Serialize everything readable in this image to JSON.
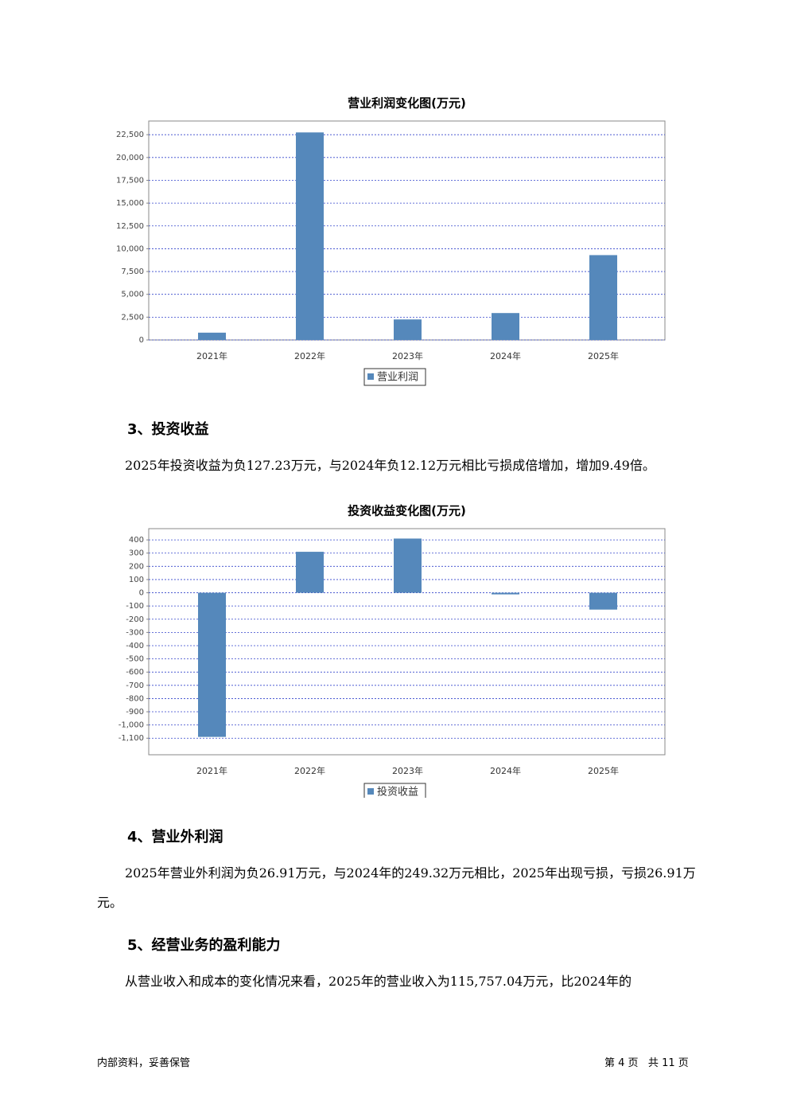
{
  "chart_data": [
    {
      "type": "bar",
      "title": "营业利润变化图(万元)",
      "categories": [
        "2021年",
        "2022年",
        "2023年",
        "2024年",
        "2025年"
      ],
      "series": [
        {
          "name": "营业利润",
          "color": "#5588bb",
          "values": [
            800,
            22750,
            2250,
            2950,
            9300
          ]
        }
      ],
      "ylim": [
        0,
        24000
      ],
      "yticks": [
        0,
        {
          "value": 2500,
          "label": "2,500"
        },
        {
          "value": 5000,
          "label": "5,000"
        },
        {
          "value": 7500,
          "label": "7,500"
        },
        {
          "value": 10000,
          "label": "10,000"
        },
        {
          "value": 12500,
          "label": "12,500"
        },
        {
          "value": 15000,
          "label": "15,000"
        },
        {
          "value": 17500,
          "label": "17,500"
        },
        {
          "value": 20000,
          "label": "20,000"
        },
        {
          "value": 22500,
          "label": "22,500"
        }
      ],
      "grid": true
    },
    {
      "type": "bar",
      "title": "投资收益变化图(万元)",
      "categories": [
        "2021年",
        "2022年",
        "2023年",
        "2024年",
        "2025年"
      ],
      "series": [
        {
          "name": "投资收益",
          "color": "#5588bb",
          "values": [
            -1090,
            310,
            410,
            -12.12,
            -127.23
          ]
        }
      ],
      "ylim": [
        -1225,
        485
      ],
      "yticks": [
        {
          "value": -1100,
          "label": "-1,100"
        },
        {
          "value": -1000,
          "label": "-1,000"
        },
        -900,
        -800,
        -700,
        -600,
        -500,
        -400,
        -300,
        -200,
        -100,
        0,
        100,
        200,
        300,
        400
      ],
      "grid": true
    }
  ],
  "sections": [
    {
      "heading": "3、投资收益",
      "paragraph": "2025年投资收益为负127.23万元，与2024年负12.12万元相比亏损成倍增加，增加9.49倍。"
    },
    {
      "heading": "4、营业外利润",
      "paragraph": "2025年营业外利润为负26.91万元，与2024年的249.32万元相比，2025年出现亏损，亏损26.91万元。"
    },
    {
      "heading": "5、经营业务的盈利能力",
      "paragraph": "从营业收入和成本的变化情况来看，2025年的营业收入为115,757.04万元，比2024年的"
    }
  ],
  "footer": {
    "left": "内部资料，妥善保管",
    "right": "第 4 页   共 11 页"
  }
}
